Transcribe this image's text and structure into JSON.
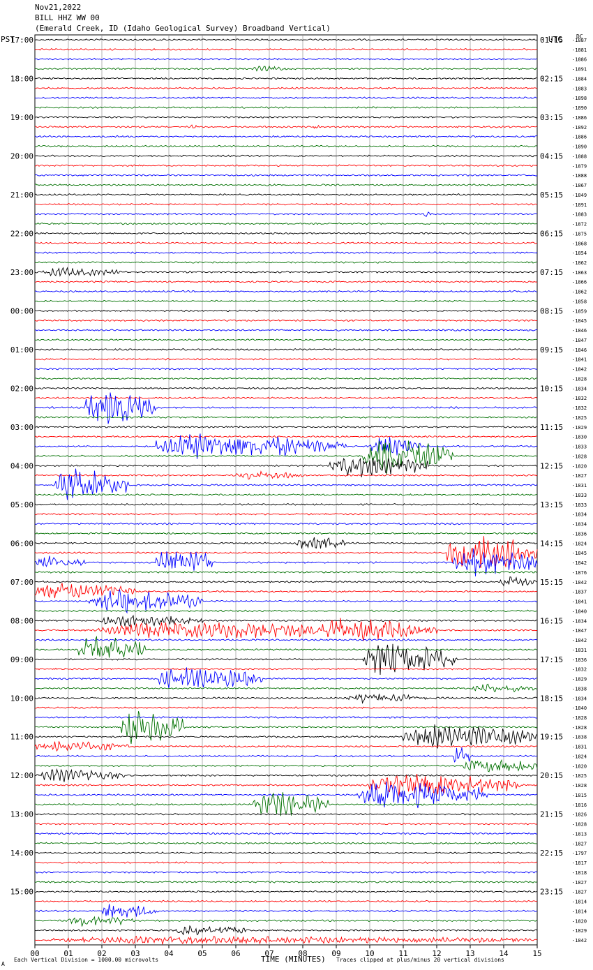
{
  "header": {
    "date": "Nov21,2022",
    "station": "BILL HHZ WW 00",
    "location": "(Emerald Creek, ID (Idaho Geological Survey) Broadband Vertical)"
  },
  "labels": {
    "left_tz": "PST",
    "right_tz": "UTC",
    "right_corner": "DC"
  },
  "footer": {
    "scale_note": "Each Vertical Division = 1000.00 microvolts",
    "clip_note": "Traces clipped at plus/minus 20 vertical divisions",
    "corner_mark": "A"
  },
  "colors": {
    "cycle": [
      "#000000",
      "#ff0000",
      "#0000ff",
      "#007000"
    ],
    "grid": "#808080"
  },
  "chart_data": {
    "type": "seismogram-helicorder",
    "xlabel": "TIME (MINUTES)",
    "x_ticks": [
      "00",
      "01",
      "02",
      "03",
      "04",
      "05",
      "06",
      "07",
      "08",
      "09",
      "10",
      "11",
      "12",
      "13",
      "14",
      "15"
    ],
    "xlim": [
      0,
      15
    ],
    "trace_minutes": 15,
    "left_hour_labels": [
      "17:00",
      "18:00",
      "19:00",
      "20:00",
      "21:00",
      "22:00",
      "23:00",
      "00:00",
      "01:00",
      "02:00",
      "03:00",
      "04:00",
      "05:00",
      "06:00",
      "07:00",
      "08:00",
      "09:00",
      "10:00",
      "11:00",
      "12:00",
      "13:00",
      "14:00",
      "15:00"
    ],
    "right_hour_labels": [
      "01:15",
      "02:15",
      "03:15",
      "04:15",
      "05:15",
      "06:15",
      "07:15",
      "08:15",
      "09:15",
      "10:15",
      "11:15",
      "12:15",
      "13:15",
      "14:15",
      "15:15",
      "16:15",
      "17:15",
      "18:15",
      "19:15",
      "20:15",
      "21:15",
      "22:15",
      "23:15"
    ],
    "dc_offsets": [
      -1887,
      -1881,
      -1886,
      -1891,
      -1884,
      -1883,
      -1898,
      -1890,
      -1886,
      -1892,
      -1886,
      -1890,
      -1888,
      -1879,
      -1888,
      -1867,
      -1849,
      -1891,
      -1883,
      -1872,
      -1875,
      -1868,
      -1854,
      -1862,
      -1863,
      -1866,
      -1862,
      -1858,
      -1859,
      -1845,
      -1846,
      -1847,
      -1846,
      -1841,
      -1842,
      -1828,
      -1834,
      -1832,
      -1832,
      -1825,
      -1829,
      -1830,
      -1833,
      -1828,
      -1820,
      -1827,
      -1831,
      -1833,
      -1833,
      -1834,
      -1834,
      -1836,
      -1824,
      -1845,
      -1842,
      -1876,
      -1842,
      -1837,
      -1841,
      -1840,
      -1834,
      -1847,
      -1842,
      -1831,
      -1836,
      -1832,
      -1829,
      -1838,
      -1834,
      -1840,
      -1828,
      -1828,
      -1838,
      -1831,
      -1824,
      -1820,
      -1825,
      -1828,
      -1815,
      -1816,
      -1826,
      -1828,
      -1813,
      -1827,
      -1797,
      -1817,
      -1818,
      -1827,
      -1827,
      -1814,
      -1814,
      -1820,
      -1829,
      -1842
    ],
    "events": [
      {
        "row": 3,
        "start": 6.5,
        "end": 7.6,
        "amp": 6
      },
      {
        "row": 9,
        "start": 4.6,
        "end": 5.0,
        "amp": 4
      },
      {
        "row": 9,
        "start": 8.3,
        "end": 8.5,
        "amp": 6
      },
      {
        "row": 12,
        "start": 14.0,
        "end": 14.2,
        "amp": 3
      },
      {
        "row": 18,
        "start": 11.6,
        "end": 11.9,
        "amp": 7
      },
      {
        "row": 24,
        "start": 0.2,
        "end": 2.6,
        "amp": 10
      },
      {
        "row": 29,
        "start": 3.2,
        "end": 3.3,
        "amp": 6
      },
      {
        "row": 38,
        "start": 1.5,
        "end": 3.6,
        "amp": 38
      },
      {
        "row": 42,
        "start": 3.6,
        "end": 9.3,
        "amp": 28
      },
      {
        "row": 42,
        "start": 10.0,
        "end": 11.5,
        "amp": 24
      },
      {
        "row": 43,
        "start": 9.8,
        "end": 12.5,
        "amp": 42
      },
      {
        "row": 44,
        "start": 8.8,
        "end": 11.8,
        "amp": 26
      },
      {
        "row": 45,
        "start": 6.0,
        "end": 8.0,
        "amp": 10
      },
      {
        "row": 46,
        "start": 0.6,
        "end": 2.8,
        "amp": 38
      },
      {
        "row": 52,
        "start": 7.8,
        "end": 9.3,
        "amp": 16
      },
      {
        "row": 53,
        "start": 12.3,
        "end": 15.0,
        "amp": 40
      },
      {
        "row": 54,
        "start": 0.0,
        "end": 1.5,
        "amp": 14
      },
      {
        "row": 54,
        "start": 3.6,
        "end": 5.3,
        "amp": 34
      },
      {
        "row": 54,
        "start": 12.5,
        "end": 15.0,
        "amp": 30
      },
      {
        "row": 56,
        "start": 13.9,
        "end": 15.0,
        "amp": 12
      },
      {
        "row": 57,
        "start": 0.0,
        "end": 3.0,
        "amp": 20
      },
      {
        "row": 58,
        "start": 1.6,
        "end": 5.0,
        "amp": 26
      },
      {
        "row": 60,
        "start": 1.9,
        "end": 5.0,
        "amp": 14
      },
      {
        "row": 61,
        "start": 1.9,
        "end": 12.0,
        "amp": 18
      },
      {
        "row": 61,
        "start": 8.3,
        "end": 11.3,
        "amp": 30
      },
      {
        "row": 63,
        "start": 1.3,
        "end": 3.3,
        "amp": 30
      },
      {
        "row": 64,
        "start": 9.8,
        "end": 12.6,
        "amp": 36
      },
      {
        "row": 66,
        "start": 3.6,
        "end": 6.8,
        "amp": 26
      },
      {
        "row": 67,
        "start": 13.0,
        "end": 15.0,
        "amp": 10
      },
      {
        "row": 68,
        "start": 9.3,
        "end": 11.8,
        "amp": 10
      },
      {
        "row": 71,
        "start": 2.5,
        "end": 4.5,
        "amp": 36
      },
      {
        "row": 72,
        "start": 11.0,
        "end": 15.0,
        "amp": 26
      },
      {
        "row": 73,
        "start": 0.0,
        "end": 2.8,
        "amp": 12
      },
      {
        "row": 74,
        "start": 12.5,
        "end": 13.0,
        "amp": 26
      },
      {
        "row": 75,
        "start": 12.8,
        "end": 15.0,
        "amp": 18
      },
      {
        "row": 76,
        "start": 0.0,
        "end": 2.8,
        "amp": 14
      },
      {
        "row": 77,
        "start": 10.0,
        "end": 14.5,
        "amp": 26
      },
      {
        "row": 78,
        "start": 9.6,
        "end": 13.5,
        "amp": 32
      },
      {
        "row": 79,
        "start": 6.5,
        "end": 8.8,
        "amp": 30
      },
      {
        "row": 90,
        "start": 2.0,
        "end": 3.7,
        "amp": 20
      },
      {
        "row": 91,
        "start": 1.0,
        "end": 3.0,
        "amp": 12
      },
      {
        "row": 92,
        "start": 4.2,
        "end": 6.4,
        "amp": 12
      },
      {
        "row": 93,
        "start": 0.5,
        "end": 15.0,
        "amp": 9
      }
    ]
  }
}
